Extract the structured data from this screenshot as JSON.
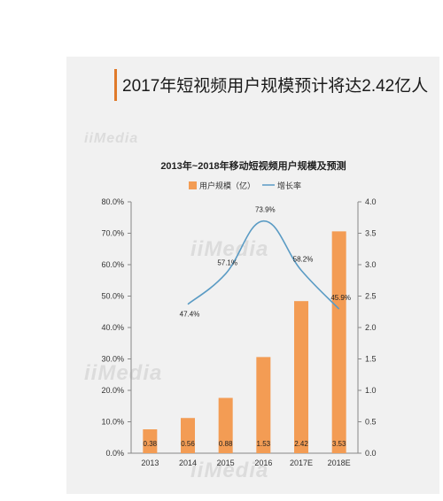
{
  "headline": "2017年短视频用户规模预计将达2.42亿人",
  "watermark": "iiMedia",
  "colors": {
    "accent": "#e07a2a",
    "bar": "#f39c54",
    "line": "#5a9bc4",
    "background": "#f1f1f1"
  },
  "chart_data": {
    "type": "bar",
    "title": "2013年~2018年移动短视频用户规模及预测",
    "categories": [
      "2013",
      "2014",
      "2015",
      "2016",
      "2017E",
      "2018E"
    ],
    "series": [
      {
        "name": "用户规模（亿）",
        "type": "bar",
        "axis": "right",
        "values": [
          0.38,
          0.56,
          0.88,
          1.53,
          2.42,
          3.53
        ],
        "value_labels": [
          "0.38",
          "0.56",
          "0.88",
          "1.53",
          "2.42",
          "3.53"
        ]
      },
      {
        "name": "增长率",
        "type": "line",
        "axis": "left",
        "values": [
          null,
          47.4,
          57.1,
          73.9,
          58.2,
          45.9
        ],
        "value_labels": [
          "",
          "47.4%",
          "57.1%",
          "73.9%",
          "58.2%",
          "45.9%"
        ]
      }
    ],
    "left_axis": {
      "ylim": [
        0,
        80
      ],
      "ticks": [
        "0.0%",
        "10.0%",
        "20.0%",
        "30.0%",
        "40.0%",
        "50.0%",
        "60.0%",
        "70.0%",
        "80.0%"
      ]
    },
    "right_axis": {
      "ylim": [
        0,
        4
      ],
      "ticks": [
        "0.0",
        "0.5",
        "1.0",
        "1.5",
        "2.0",
        "2.5",
        "3.0",
        "3.5",
        "4.0"
      ]
    },
    "legend": "top-center",
    "grid": false
  }
}
